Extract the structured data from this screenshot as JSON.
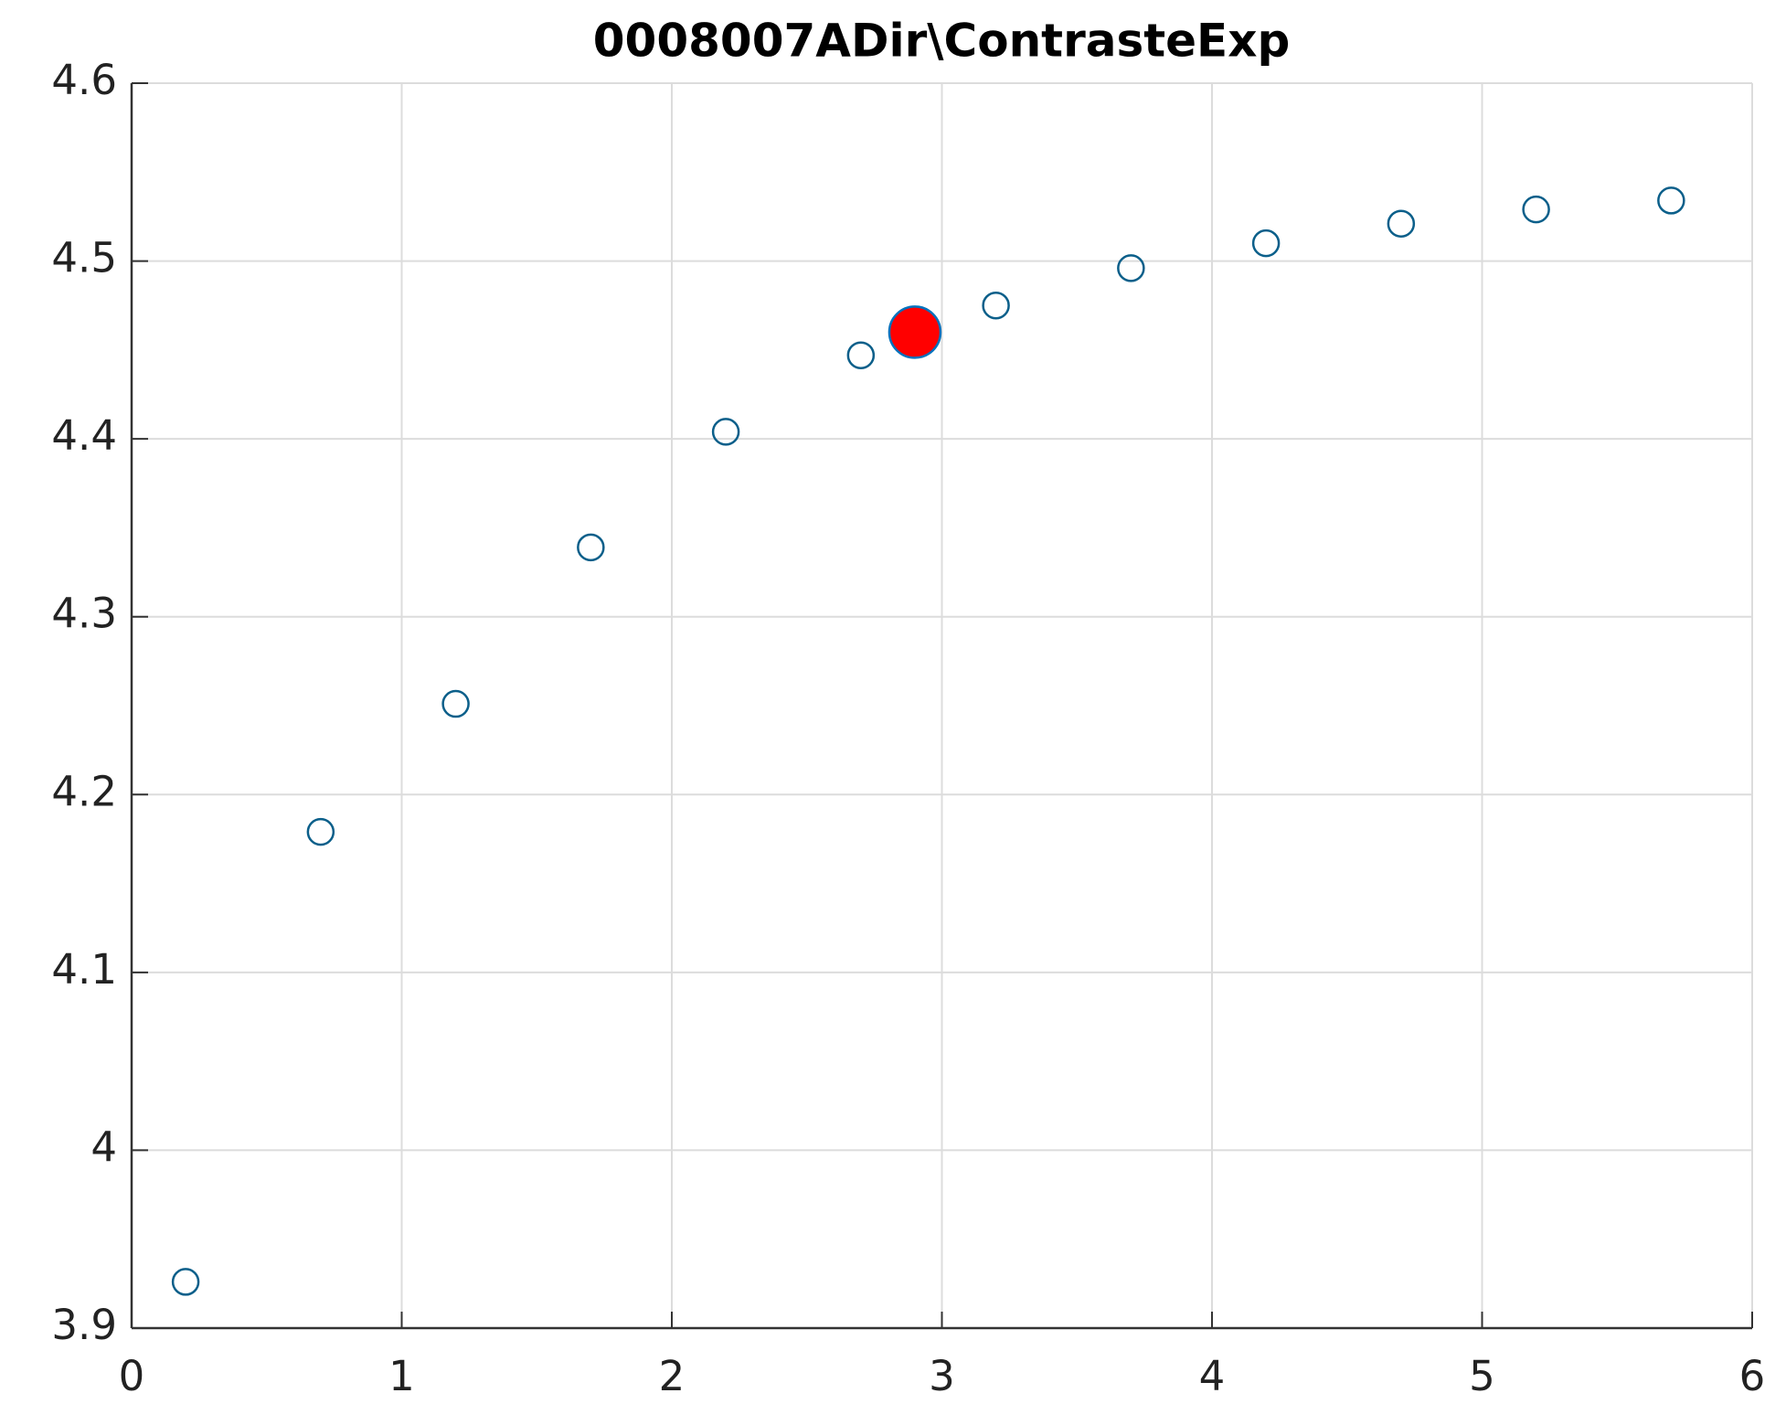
{
  "chart_data": {
    "type": "scatter",
    "title": "0008007ADir\\ContrasteExp",
    "xlim": [
      0,
      6
    ],
    "xticks": [
      0,
      1,
      2,
      3,
      4,
      5,
      6
    ],
    "ylim": [
      3.9,
      4.6
    ],
    "yticks": [
      3.9,
      4,
      4.1,
      4.2,
      4.3,
      4.4,
      4.5,
      4.6
    ],
    "grid": true,
    "series": [
      {
        "color": "#0b5f8a",
        "marker": "open",
        "x": [
          0.2,
          0.7,
          1.2,
          1.7,
          2.2,
          2.7,
          3.2,
          3.7,
          4.2,
          4.7,
          5.2,
          5.7
        ],
        "values": [
          3.926,
          4.179,
          4.251,
          4.339,
          4.404,
          4.447,
          4.475,
          4.496,
          4.51,
          4.521,
          4.529,
          4.534
        ]
      },
      {
        "color": "#ff0000",
        "edge_color": "#0072bd",
        "marker": "filled",
        "size": "large",
        "x": [
          2.9
        ],
        "values": [
          4.46
        ]
      }
    ]
  }
}
